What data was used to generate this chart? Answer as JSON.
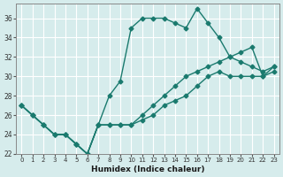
{
  "xlabel": "Humidex (Indice chaleur)",
  "ylabel": "",
  "bg_color": "#d6ecec",
  "grid_color": "#ffffff",
  "line_color": "#1a7a6e",
  "xlim": [
    0,
    23
  ],
  "ylim": [
    22,
    37
  ],
  "xticks": [
    0,
    1,
    2,
    3,
    4,
    5,
    6,
    7,
    8,
    9,
    10,
    11,
    12,
    13,
    14,
    15,
    16,
    17,
    18,
    19,
    20,
    21,
    22,
    23
  ],
  "yticks": [
    22,
    24,
    26,
    28,
    30,
    32,
    34,
    36
  ],
  "line1_x": [
    0,
    1,
    2,
    3,
    4,
    5,
    6,
    7,
    8,
    9,
    10,
    11,
    12,
    13,
    14,
    15,
    16,
    17,
    18,
    19,
    20,
    21,
    22,
    23
  ],
  "line1_y": [
    27,
    26,
    25,
    24,
    24,
    23,
    22,
    25,
    28,
    29.5,
    35,
    36,
    36,
    36,
    35.5,
    35,
    37,
    35.5,
    34,
    32,
    31.5,
    31,
    30.5,
    31
  ],
  "line2_x": [
    0,
    1,
    2,
    3,
    4,
    5,
    6,
    7,
    8,
    9,
    10,
    11,
    12,
    13,
    14,
    15,
    16,
    17,
    18,
    19,
    20,
    21,
    22,
    23
  ],
  "line2_y": [
    27,
    26,
    25,
    24,
    24,
    23,
    22,
    25,
    25,
    25,
    25,
    26,
    27,
    28,
    29,
    30,
    30.5,
    31,
    31.5,
    32,
    32.5,
    33,
    30,
    31
  ],
  "line3_x": [
    0,
    1,
    2,
    3,
    4,
    5,
    6,
    7,
    8,
    9,
    10,
    11,
    12,
    13,
    14,
    15,
    16,
    17,
    18,
    19,
    20,
    21,
    22,
    23
  ],
  "line3_y": [
    27,
    26,
    25,
    24,
    24,
    23,
    22,
    25,
    25,
    25,
    25,
    25.5,
    26,
    27,
    27.5,
    28,
    29,
    30,
    30.5,
    30,
    30,
    30,
    30,
    30.5
  ]
}
